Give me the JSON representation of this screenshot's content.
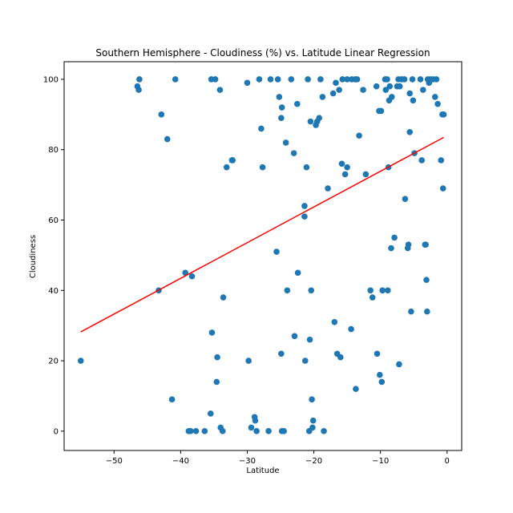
{
  "chart_data": {
    "type": "scatter",
    "title": "Southern Hemisphere - Cloudiness (%) vs. Latitude Linear Regression",
    "xlabel": "Latitude",
    "ylabel": "Cloudiness",
    "xlim": [
      -57.5,
      2.2
    ],
    "ylim": [
      -5.5,
      105
    ],
    "xticks": [
      -50,
      -40,
      -30,
      -20,
      -10,
      0
    ],
    "yticks": [
      0,
      20,
      40,
      60,
      80,
      100
    ],
    "grid": false,
    "point_color": "#1f77b4",
    "line_color": "#ff0000",
    "regression_line": {
      "x": [
        -55.0,
        -0.5
      ],
      "y": [
        28.2,
        83.5
      ]
    },
    "points": [
      [
        -55.0,
        20
      ],
      [
        -46.5,
        98
      ],
      [
        -46.3,
        97
      ],
      [
        -46.2,
        100
      ],
      [
        -43.3,
        40
      ],
      [
        -42.9,
        90
      ],
      [
        -42.0,
        83
      ],
      [
        -41.3,
        9
      ],
      [
        -40.8,
        100
      ],
      [
        -39.3,
        45
      ],
      [
        -38.8,
        0
      ],
      [
        -38.5,
        0
      ],
      [
        -38.3,
        44
      ],
      [
        -37.7,
        0
      ],
      [
        -36.4,
        0
      ],
      [
        -35.5,
        5
      ],
      [
        -35.4,
        100
      ],
      [
        -35.3,
        28
      ],
      [
        -34.8,
        100
      ],
      [
        -34.6,
        14
      ],
      [
        -34.5,
        21
      ],
      [
        -34.1,
        97
      ],
      [
        -34.0,
        1
      ],
      [
        -33.7,
        0
      ],
      [
        -33.6,
        38
      ],
      [
        -33.1,
        75
      ],
      [
        -32.3,
        77
      ],
      [
        -32.2,
        77
      ],
      [
        -30.0,
        99
      ],
      [
        -29.8,
        20
      ],
      [
        -29.4,
        1
      ],
      [
        -28.9,
        4
      ],
      [
        -28.8,
        3
      ],
      [
        -28.6,
        0
      ],
      [
        -28.2,
        100
      ],
      [
        -27.9,
        86
      ],
      [
        -27.7,
        75
      ],
      [
        -26.8,
        0
      ],
      [
        -26.5,
        100
      ],
      [
        -25.6,
        51
      ],
      [
        -25.4,
        100
      ],
      [
        -25.2,
        95
      ],
      [
        -24.9,
        89
      ],
      [
        -24.8,
        92
      ],
      [
        -24.9,
        22
      ],
      [
        -24.8,
        0
      ],
      [
        -24.5,
        0
      ],
      [
        -24.2,
        82
      ],
      [
        -24.0,
        40
      ],
      [
        -23.4,
        100
      ],
      [
        -23.0,
        79
      ],
      [
        -22.9,
        27
      ],
      [
        -22.5,
        93
      ],
      [
        -22.4,
        45
      ],
      [
        -21.4,
        64
      ],
      [
        -21.4,
        61
      ],
      [
        -21.3,
        20
      ],
      [
        -21.1,
        75
      ],
      [
        -20.9,
        100
      ],
      [
        -20.7,
        0
      ],
      [
        -20.6,
        26
      ],
      [
        -20.5,
        88
      ],
      [
        -20.4,
        40
      ],
      [
        -20.3,
        9
      ],
      [
        -20.2,
        1
      ],
      [
        -20.1,
        3
      ],
      [
        -19.7,
        87
      ],
      [
        -19.5,
        88
      ],
      [
        -19.2,
        89
      ],
      [
        -19.0,
        100
      ],
      [
        -18.7,
        95
      ],
      [
        -18.5,
        0
      ],
      [
        -17.9,
        69
      ],
      [
        -17.1,
        96
      ],
      [
        -16.9,
        31
      ],
      [
        -16.7,
        99
      ],
      [
        -16.5,
        22
      ],
      [
        -16.2,
        97
      ],
      [
        -16.0,
        21
      ],
      [
        -15.8,
        76
      ],
      [
        -15.7,
        100
      ],
      [
        -15.3,
        73
      ],
      [
        -15.0,
        100
      ],
      [
        -15.0,
        75
      ],
      [
        -14.4,
        29
      ],
      [
        -14.3,
        100
      ],
      [
        -13.8,
        100
      ],
      [
        -13.7,
        12
      ],
      [
        -13.5,
        100
      ],
      [
        -13.2,
        84
      ],
      [
        -12.6,
        97
      ],
      [
        -12.2,
        73
      ],
      [
        -11.5,
        40
      ],
      [
        -11.2,
        38
      ],
      [
        -10.6,
        98
      ],
      [
        -10.5,
        22
      ],
      [
        -10.2,
        91
      ],
      [
        -10.1,
        16
      ],
      [
        -9.9,
        91
      ],
      [
        -9.8,
        14
      ],
      [
        -9.7,
        40
      ],
      [
        -9.3,
        100
      ],
      [
        -9.2,
        97
      ],
      [
        -9.0,
        100
      ],
      [
        -8.9,
        40
      ],
      [
        -8.8,
        75
      ],
      [
        -8.7,
        94
      ],
      [
        -8.6,
        98
      ],
      [
        -8.4,
        52
      ],
      [
        -8.3,
        95
      ],
      [
        -7.9,
        55
      ],
      [
        -7.5,
        98
      ],
      [
        -7.3,
        100
      ],
      [
        -7.2,
        19
      ],
      [
        -7.1,
        98
      ],
      [
        -6.8,
        100
      ],
      [
        -6.4,
        100
      ],
      [
        -6.3,
        66
      ],
      [
        -5.9,
        52
      ],
      [
        -5.8,
        53
      ],
      [
        -5.6,
        96
      ],
      [
        -5.6,
        85
      ],
      [
        -5.4,
        34
      ],
      [
        -5.2,
        100
      ],
      [
        -5.1,
        94
      ],
      [
        -4.9,
        79
      ],
      [
        -4.0,
        100
      ],
      [
        -3.8,
        77
      ],
      [
        -3.6,
        97
      ],
      [
        -3.3,
        53
      ],
      [
        -3.2,
        53
      ],
      [
        -3.1,
        43
      ],
      [
        -3.0,
        34
      ],
      [
        -2.9,
        100
      ],
      [
        -2.7,
        99
      ],
      [
        -2.5,
        100
      ],
      [
        -2.1,
        100
      ],
      [
        -1.8,
        95
      ],
      [
        -1.6,
        100
      ],
      [
        -1.4,
        93
      ],
      [
        -0.9,
        77
      ],
      [
        -0.7,
        90
      ],
      [
        -0.6,
        69
      ],
      [
        -0.5,
        90
      ]
    ]
  }
}
